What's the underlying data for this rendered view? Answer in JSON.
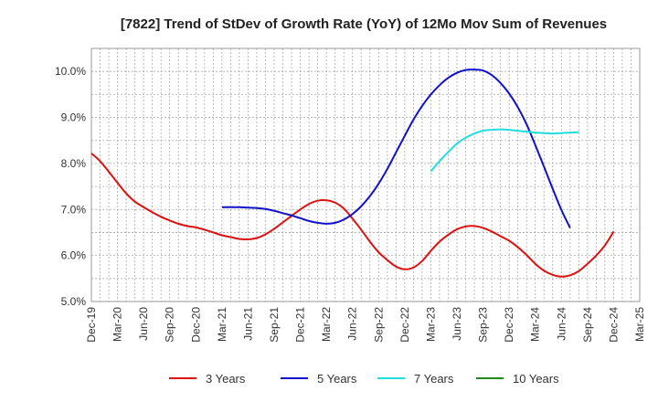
{
  "chart_data": {
    "type": "line",
    "title": "[7822]  Trend of StDev of Growth Rate (YoY) of 12Mo Mov Sum of Revenues",
    "xlabel": "",
    "ylabel": "",
    "ylim": [
      5.0,
      10.5
    ],
    "yticks": [
      5.0,
      6.0,
      7.0,
      8.0,
      9.0,
      10.0
    ],
    "ytick_labels": [
      "5.0%",
      "6.0%",
      "7.0%",
      "8.0%",
      "9.0%",
      "10.0%"
    ],
    "x_months": [
      "Dec-19",
      "Jan-20",
      "Feb-20",
      "Mar-20",
      "Apr-20",
      "May-20",
      "Jun-20",
      "Jul-20",
      "Aug-20",
      "Sep-20",
      "Oct-20",
      "Nov-20",
      "Dec-20",
      "Jan-21",
      "Feb-21",
      "Mar-21",
      "Apr-21",
      "May-21",
      "Jun-21",
      "Jul-21",
      "Aug-21",
      "Sep-21",
      "Oct-21",
      "Nov-21",
      "Dec-21",
      "Jan-22",
      "Feb-22",
      "Mar-22",
      "Apr-22",
      "May-22",
      "Jun-22",
      "Jul-22",
      "Aug-22",
      "Sep-22",
      "Oct-22",
      "Nov-22",
      "Dec-22",
      "Jan-23",
      "Feb-23",
      "Mar-23",
      "Apr-23",
      "May-23",
      "Jun-23",
      "Jul-23",
      "Aug-23",
      "Sep-23",
      "Oct-23",
      "Nov-23",
      "Dec-23",
      "Jan-24",
      "Feb-24",
      "Mar-24",
      "Apr-24",
      "May-24",
      "Jun-24",
      "Jul-24",
      "Aug-24",
      "Sep-24",
      "Oct-24",
      "Nov-24",
      "Dec-24",
      "Jan-25",
      "Feb-25",
      "Mar-25"
    ],
    "x_tick_labels": [
      "Dec-19",
      "Mar-20",
      "Jun-20",
      "Sep-20",
      "Dec-20",
      "Mar-21",
      "Jun-21",
      "Sep-21",
      "Dec-21",
      "Mar-22",
      "Jun-22",
      "Sep-22",
      "Dec-22",
      "Mar-23",
      "Jun-23",
      "Sep-23",
      "Dec-23",
      "Mar-24",
      "Jun-24",
      "Sep-24",
      "Dec-24",
      "Mar-25"
    ],
    "grid": true,
    "legend_position": "bottom",
    "series": [
      {
        "name": "3 Years",
        "color": "#dd1111",
        "start_index": 0,
        "values": [
          8.22,
          8.05,
          7.82,
          7.58,
          7.35,
          7.17,
          7.05,
          6.94,
          6.84,
          6.76,
          6.69,
          6.64,
          6.61,
          6.56,
          6.5,
          6.44,
          6.4,
          6.36,
          6.35,
          6.38,
          6.46,
          6.58,
          6.72,
          6.86,
          7.0,
          7.12,
          7.19,
          7.2,
          7.15,
          7.02,
          6.8,
          6.56,
          6.3,
          6.07,
          5.9,
          5.76,
          5.7,
          5.74,
          5.88,
          6.1,
          6.3,
          6.45,
          6.57,
          6.63,
          6.64,
          6.6,
          6.52,
          6.42,
          6.32,
          6.18,
          6.01,
          5.82,
          5.67,
          5.58,
          5.54,
          5.57,
          5.66,
          5.82,
          6.0,
          6.22,
          6.52
        ]
      },
      {
        "name": "5 Years",
        "color": "#1111cc",
        "start_index": 15,
        "values": [
          7.05,
          7.05,
          7.05,
          7.04,
          7.03,
          7.01,
          6.97,
          6.92,
          6.87,
          6.81,
          6.75,
          6.71,
          6.69,
          6.71,
          6.78,
          6.9,
          7.07,
          7.29,
          7.56,
          7.88,
          8.24,
          8.6,
          8.95,
          9.25,
          9.5,
          9.7,
          9.86,
          9.97,
          10.03,
          10.04,
          10.02,
          9.92,
          9.75,
          9.52,
          9.22,
          8.85,
          8.4,
          7.93,
          7.45,
          6.99,
          6.6
        ]
      },
      {
        "name": "7 Years",
        "color": "#22dddd",
        "start_index": 39,
        "values": [
          7.83,
          8.05,
          8.25,
          8.43,
          8.56,
          8.65,
          8.71,
          8.73,
          8.74,
          8.73,
          8.71,
          8.69,
          8.67,
          8.66,
          8.65,
          8.66,
          8.67,
          8.68
        ]
      },
      {
        "name": "10 Years",
        "color": "#228822",
        "start_index": 0,
        "values": []
      }
    ]
  }
}
